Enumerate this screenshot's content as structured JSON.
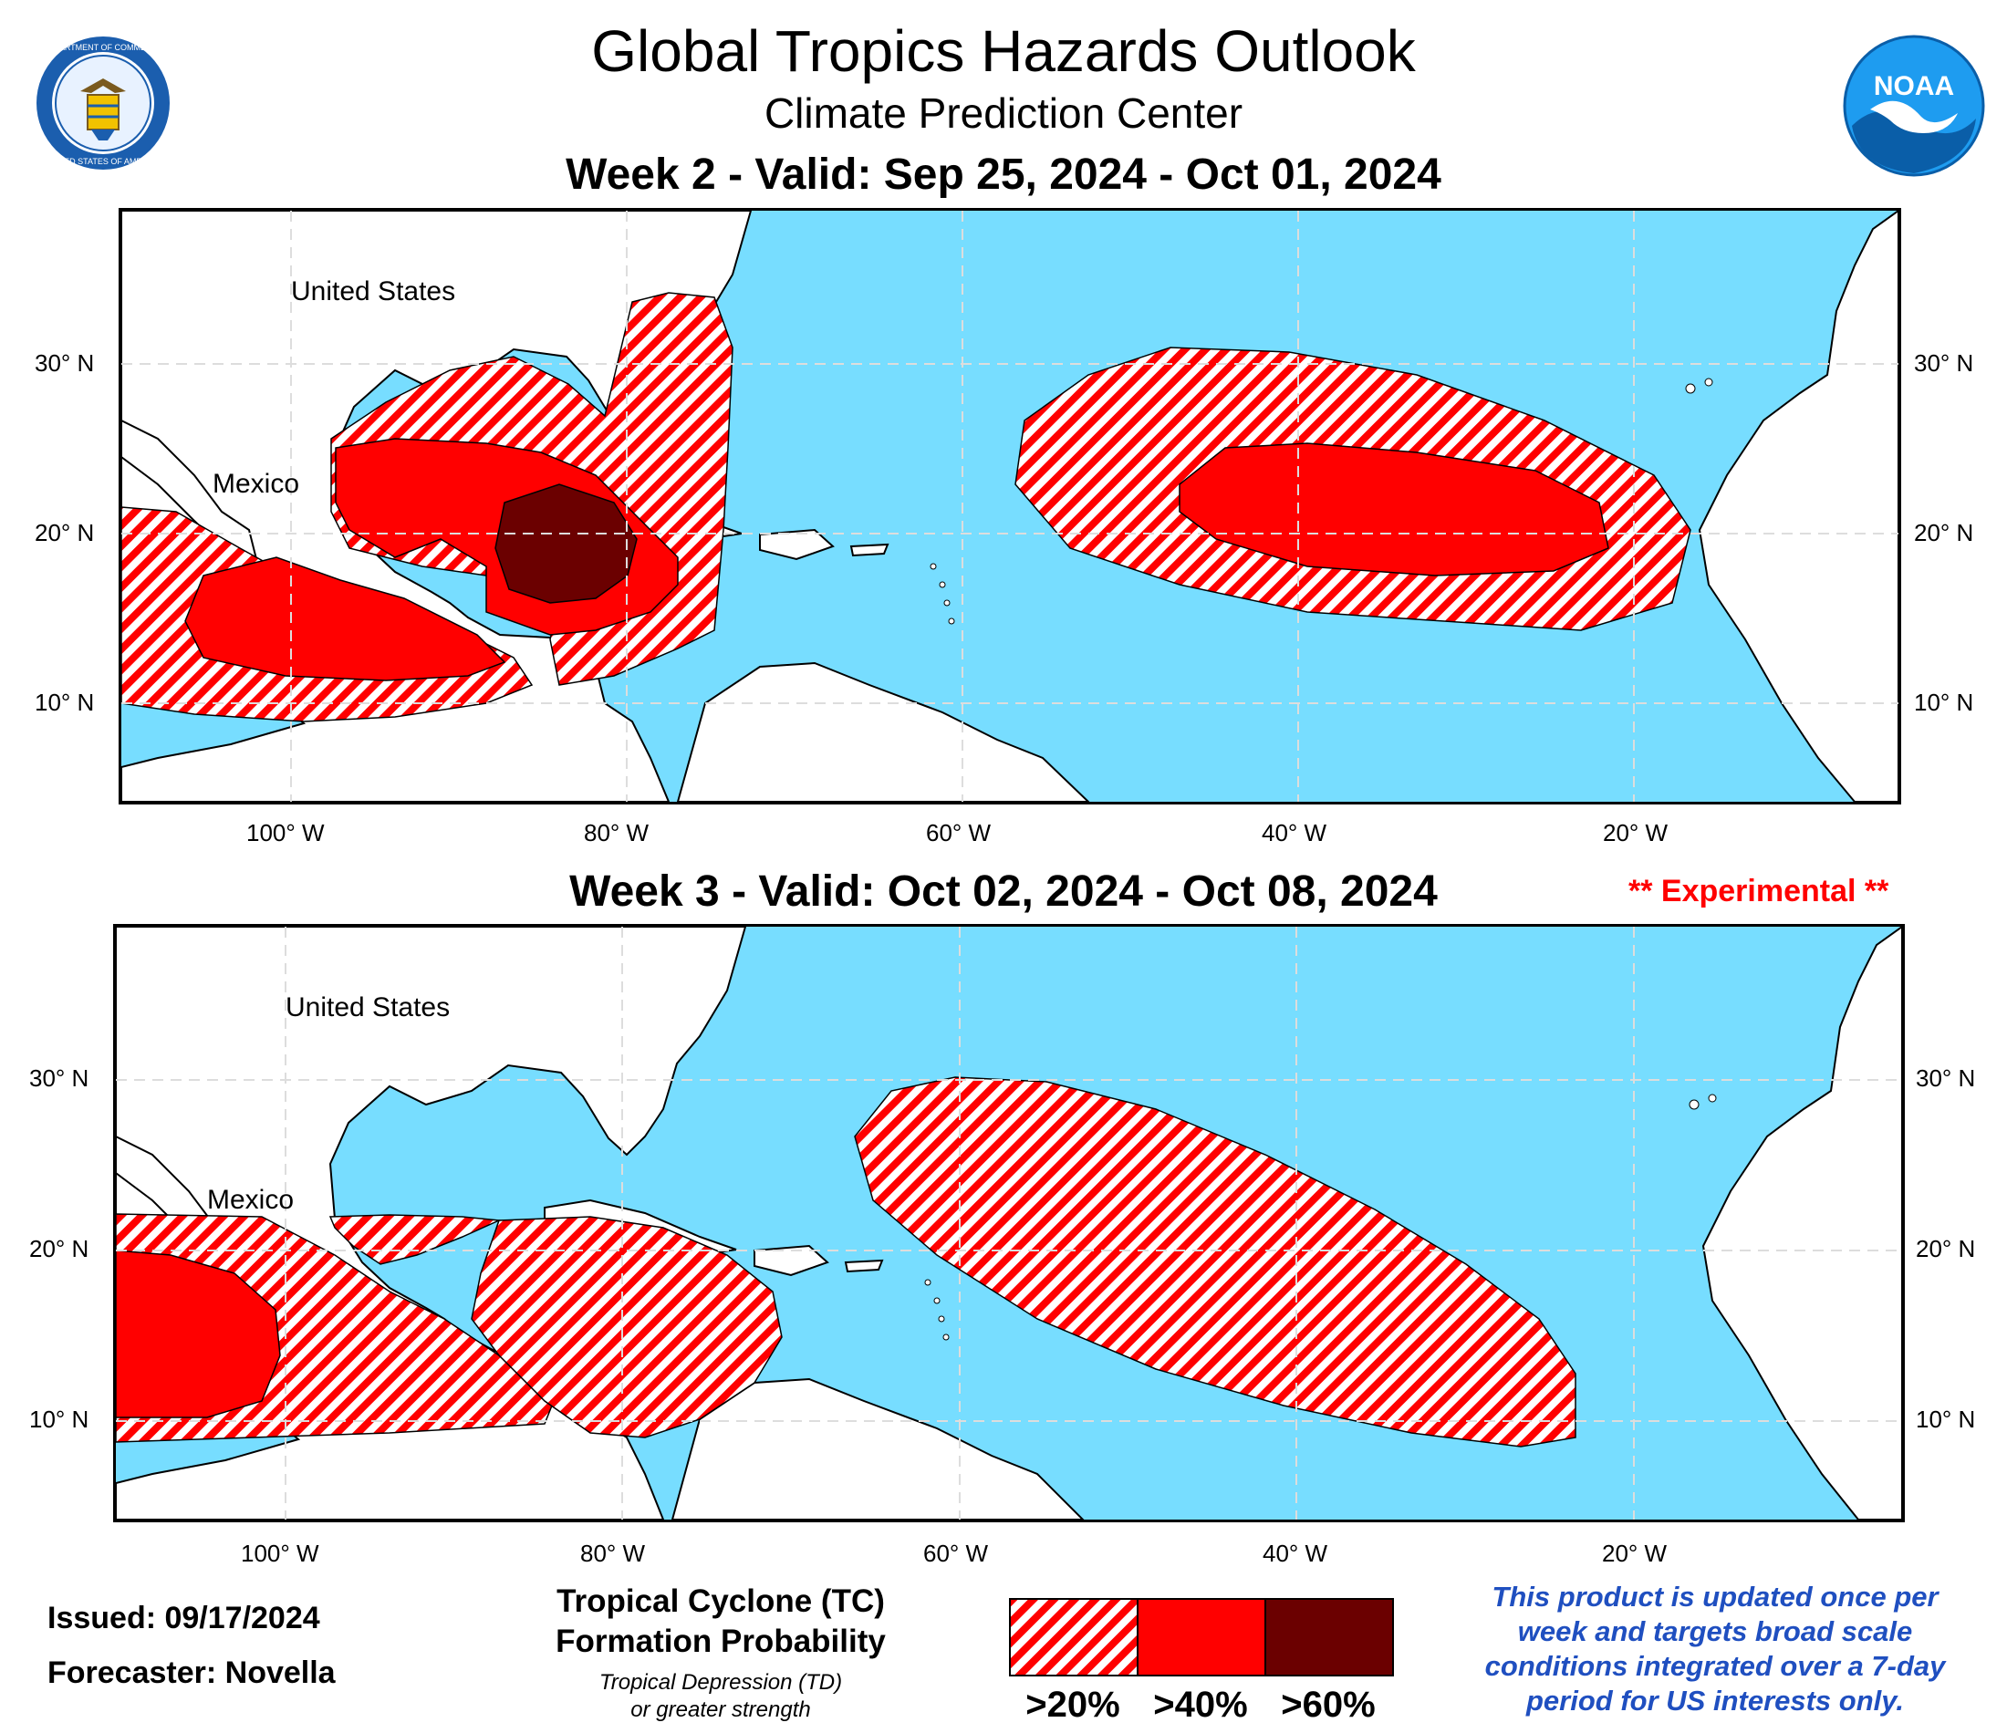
{
  "header": {
    "title": "Global Tropics Hazards Outlook",
    "subtitle": "Climate Prediction Center",
    "commerce_seal": {
      "lettering": "DEPARTMENT OF COMMERCE · UNITED STATES OF AMERICA",
      "icon": "commerce-seal-icon"
    },
    "noaa_logo": {
      "lettering": "NOAA",
      "icon": "noaa-logo-icon"
    }
  },
  "maps": [
    {
      "id": "week2",
      "title": "Week 2 - Valid: Sep 25, 2024 - Oct 01, 2024",
      "badge": "",
      "country_labels": [
        "United States",
        "Mexico"
      ],
      "lat_labels": [
        "30° N",
        "20° N",
        "10° N"
      ],
      "lon_labels": [
        "100° W",
        "80° W",
        "60° W",
        "40° W",
        "20° W"
      ]
    },
    {
      "id": "week3",
      "title": "Week 3 - Valid: Oct 02, 2024 - Oct 08, 2024",
      "badge": "** Experimental **",
      "country_labels": [
        "United States",
        "Mexico"
      ],
      "lat_labels": [
        "30° N",
        "20° N",
        "10° N"
      ],
      "lon_labels": [
        "100° W",
        "80° W",
        "60° W",
        "40° W",
        "20° W"
      ]
    }
  ],
  "footer": {
    "issued": "Issued: 09/17/2024",
    "forecaster": "Forecaster: Novella",
    "legend_title_1": "Tropical Cyclone (TC)",
    "legend_title_2": "Formation Probability",
    "legend_sub_1": "Tropical Depression (TD)",
    "legend_sub_2": "or greater strength",
    "legend_items": [
      ">20%",
      ">40%",
      ">60%"
    ],
    "note_lines": [
      "This product is updated once per",
      "week and targets broad scale",
      "conditions integrated over a 7-day",
      "period for US interests only."
    ]
  },
  "colors": {
    "ocean": "#77ddff",
    "land": "#ffffff",
    "hatch_red": "#ff0000",
    "solid_red": "#ff0000",
    "dark_red": "#6b0000",
    "note_blue": "#1f4fc0",
    "experimental_red": "#ff0000"
  }
}
